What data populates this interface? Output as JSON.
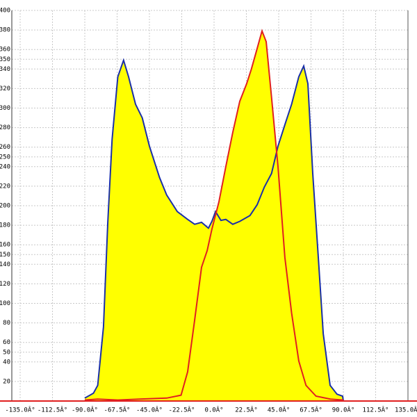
{
  "chart_data": {
    "type": "area",
    "xlim": [
      -135,
      135
    ],
    "ylim": [
      0,
      400
    ],
    "xticks": [
      {
        "value": -135,
        "label": "-135.0Â°"
      },
      {
        "value": -112.5,
        "label": "-112.5Â°"
      },
      {
        "value": -90,
        "label": "-90.0Â°"
      },
      {
        "value": -67.5,
        "label": "-67.5Â°"
      },
      {
        "value": -45,
        "label": "-45.0Â°"
      },
      {
        "value": -22.5,
        "label": "-22.5Â°"
      },
      {
        "value": 0,
        "label": "0.0Â°"
      },
      {
        "value": 22.5,
        "label": "22.5Â°"
      },
      {
        "value": 45,
        "label": "45.0Â°"
      },
      {
        "value": 67.5,
        "label": "67.5Â°"
      },
      {
        "value": 90,
        "label": "90.0Â°"
      },
      {
        "value": 112.5,
        "label": "112.5Â°"
      },
      {
        "value": 135,
        "label": "135.0Â°"
      }
    ],
    "yticks": [
      20,
      40,
      50,
      60,
      80,
      100,
      120,
      140,
      150,
      160,
      180,
      200,
      220,
      240,
      250,
      260,
      280,
      300,
      320,
      340,
      350,
      360,
      380,
      400
    ],
    "grid": true,
    "fill_color": "#ffff00",
    "series": [
      {
        "color": "#1a2fa8",
        "x": [
          -90,
          -84,
          -81,
          -77,
          -74,
          -71,
          -67,
          -63,
          -59.5,
          -54.7,
          -50,
          -45,
          -38,
          -33,
          -25.6,
          -18.4,
          -13.5,
          -8.7,
          -3.9,
          -1.5,
          1,
          4.8,
          8.2,
          13,
          17.9,
          25,
          30,
          35,
          40,
          44.5,
          49.3,
          54,
          59,
          62.4,
          65.3,
          68.7,
          72.6,
          76,
          80.8,
          85.6,
          89.5,
          90
        ],
        "values": [
          3,
          8,
          16,
          76,
          183,
          268,
          332,
          349,
          332,
          304,
          290,
          261,
          229,
          211,
          194,
          186,
          181,
          183,
          177,
          184,
          194,
          185,
          186,
          181,
          184,
          190,
          201,
          219,
          233,
          261,
          283,
          304,
          332,
          343,
          325,
          233,
          147,
          69,
          16,
          7,
          5,
          0
        ]
      },
      {
        "color": "#e02020",
        "x": [
          -90,
          -81,
          -67,
          -52,
          -33,
          -23,
          -18.4,
          -13.5,
          -8.7,
          -4.8,
          -1.5,
          3.4,
          8.2,
          13,
          17.9,
          22.7,
          26,
          30,
          33.4,
          36.3,
          40,
          44.5,
          49.3,
          54,
          59,
          64,
          71,
          81,
          90
        ],
        "values": [
          1,
          2,
          1,
          2,
          3,
          6,
          30,
          83,
          137,
          154,
          176,
          204,
          240,
          275,
          307,
          325,
          340,
          361,
          379,
          368,
          311,
          240,
          147,
          90,
          41,
          16,
          5,
          2,
          1
        ]
      }
    ]
  }
}
